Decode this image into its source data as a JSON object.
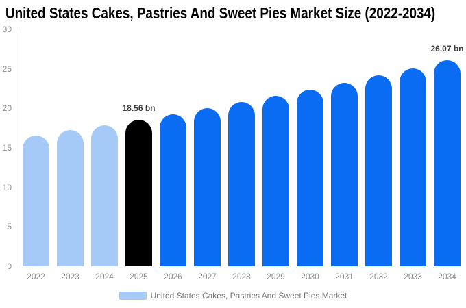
{
  "title": "United States Cakes, Pastries And Sweet Pies Market Size (2022-2034)",
  "legend": {
    "label": "United States Cakes, Pastries And Sweet Pies Market",
    "swatch_color": "#A5CAF7"
  },
  "colors": {
    "historical_bar": "#A5CAF7",
    "highlight_year_bar": "#000000",
    "forecast_bar": "#0A6CF2",
    "axis_line": "#D9D9D9",
    "tick_text": "#8C8C8C",
    "legend_text": "#737373",
    "value_label_text": "#3A3A3A",
    "title_text": "#000000",
    "background": "#FFFFFF"
  },
  "chart_data": {
    "type": "bar",
    "title": "United States Cakes, Pastries And Sweet Pies Market Size (2022-2034)",
    "categories": [
      "2022",
      "2023",
      "2024",
      "2025",
      "2026",
      "2027",
      "2028",
      "2029",
      "2030",
      "2031",
      "2032",
      "2033",
      "2034"
    ],
    "values": [
      16.58,
      17.22,
      17.88,
      18.56,
      19.27,
      20.01,
      20.78,
      21.58,
      22.41,
      23.27,
      24.16,
      25.09,
      26.07
    ],
    "bar_colors": [
      "#A5CAF7",
      "#A5CAF7",
      "#A5CAF7",
      "#000000",
      "#0A6CF2",
      "#0A6CF2",
      "#0A6CF2",
      "#0A6CF2",
      "#0A6CF2",
      "#0A6CF2",
      "#0A6CF2",
      "#0A6CF2",
      "#0A6CF2"
    ],
    "value_labels": [
      {
        "category": "2025",
        "text": "18.56 bn"
      },
      {
        "category": "2034",
        "text": "26.07 bn"
      }
    ],
    "xlabel": "",
    "ylabel": "",
    "ylim": [
      0,
      30
    ],
    "yticks": [
      0,
      5,
      10,
      15,
      20,
      25,
      30
    ],
    "grid": false,
    "legend_position": "bottom",
    "legend_entries": [
      "United States Cakes, Pastries And Sweet Pies Market"
    ]
  }
}
